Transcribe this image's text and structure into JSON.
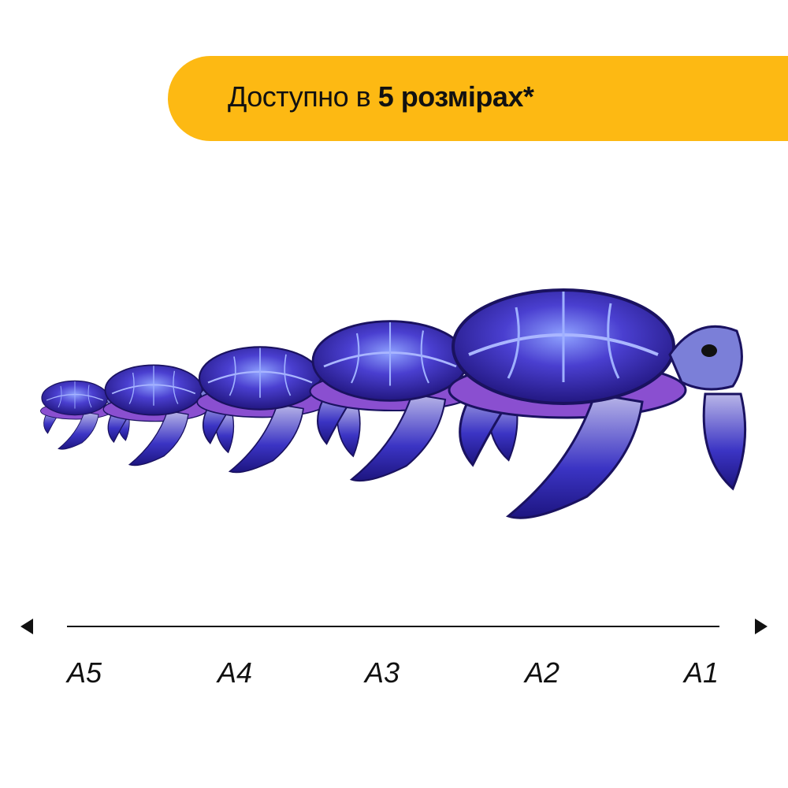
{
  "banner": {
    "text_regular": "Доступно в ",
    "text_bold": "5 розмірах*",
    "color": "#fdb913"
  },
  "sizes": [
    "A5",
    "A4",
    "A3",
    "A2",
    "A1"
  ],
  "colors": {
    "shell": "#3a2fb8",
    "shell_light": "#7a8cf0",
    "accent": "#8a4fd0",
    "outline": "#1a1260"
  }
}
